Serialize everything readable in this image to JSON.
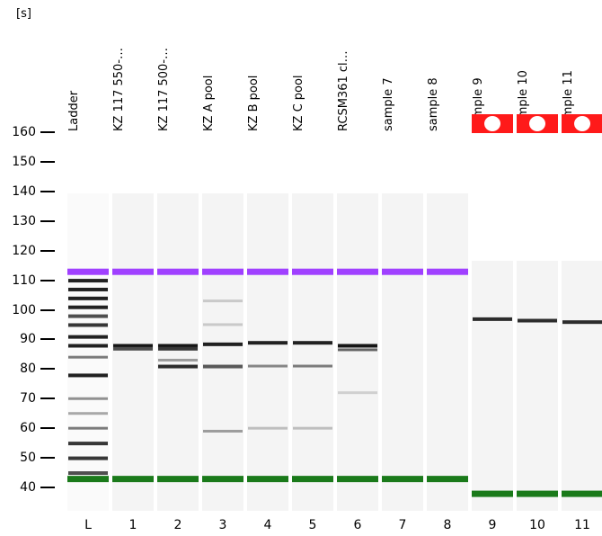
{
  "unit_label": "[s]",
  "y_ticks": [
    "160",
    "150",
    "140",
    "130",
    "120",
    "110",
    "100",
    "90",
    "80",
    "70",
    "60",
    "50",
    "40"
  ],
  "lanes": [
    {
      "label": "Ladder",
      "number": "L"
    },
    {
      "label": "KZ 117 550-…",
      "number": "1"
    },
    {
      "label": "KZ 117 500-…",
      "number": "2"
    },
    {
      "label": "KZ A pool",
      "number": "3"
    },
    {
      "label": "KZ B pool",
      "number": "4"
    },
    {
      "label": "KZ C pool",
      "number": "5"
    },
    {
      "label": "RCSM361 cl…",
      "number": "6"
    },
    {
      "label": "sample 7",
      "number": "7"
    },
    {
      "label": "sample 8",
      "number": "8"
    },
    {
      "label": "sample 9",
      "number": "9"
    },
    {
      "label": "sample 10",
      "number": "10"
    },
    {
      "label": "sample 11",
      "number": "11"
    }
  ],
  "alert_icon": "alert-icon",
  "colors": {
    "upper_marker": "#a040ff",
    "lower_marker": "#1a7a1a",
    "alert": "#ff1a1a"
  },
  "chart_data": {
    "type": "gel",
    "y_unit": "s",
    "ylim": [
      32,
      163
    ],
    "upper_marker_s": 113,
    "lower_marker_s": 43,
    "lanes": [
      {
        "number": "L",
        "bands": [
          {
            "s": 110,
            "i": 0.9
          },
          {
            "s": 107,
            "i": 0.9
          },
          {
            "s": 104,
            "i": 0.9
          },
          {
            "s": 101,
            "i": 0.9
          },
          {
            "s": 98,
            "i": 0.7
          },
          {
            "s": 95,
            "i": 0.8
          },
          {
            "s": 91,
            "i": 0.9
          },
          {
            "s": 88,
            "i": 0.9
          },
          {
            "s": 84,
            "i": 0.5
          },
          {
            "s": 78,
            "i": 0.9
          },
          {
            "s": 70,
            "i": 0.4
          },
          {
            "s": 65,
            "i": 0.3
          },
          {
            "s": 60,
            "i": 0.5
          },
          {
            "s": 55,
            "i": 0.8
          },
          {
            "s": 50,
            "i": 0.8
          },
          {
            "s": 45,
            "i": 0.7
          }
        ],
        "upper": true,
        "lower": true
      },
      {
        "number": "1",
        "bands": [
          {
            "s": 88,
            "i": 0.95
          },
          {
            "s": 87,
            "i": 0.7
          }
        ],
        "upper": true,
        "lower": true
      },
      {
        "number": "2",
        "bands": [
          {
            "s": 88,
            "i": 0.95
          },
          {
            "s": 87,
            "i": 0.8
          },
          {
            "s": 83,
            "i": 0.35
          },
          {
            "s": 81,
            "i": 0.85
          }
        ],
        "upper": true,
        "lower": true
      },
      {
        "number": "3",
        "bands": [
          {
            "s": 103,
            "i": 0.15
          },
          {
            "s": 95,
            "i": 0.15
          },
          {
            "s": 88.5,
            "i": 0.9
          },
          {
            "s": 81,
            "i": 0.65
          },
          {
            "s": 59,
            "i": 0.35
          }
        ],
        "upper": true,
        "lower": true
      },
      {
        "number": "4",
        "bands": [
          {
            "s": 89,
            "i": 0.9
          },
          {
            "s": 81,
            "i": 0.45
          },
          {
            "s": 60,
            "i": 0.2
          }
        ],
        "upper": true,
        "lower": true
      },
      {
        "number": "5",
        "bands": [
          {
            "s": 89,
            "i": 0.9
          },
          {
            "s": 81,
            "i": 0.5
          },
          {
            "s": 60,
            "i": 0.2
          }
        ],
        "upper": true,
        "lower": true
      },
      {
        "number": "6",
        "bands": [
          {
            "s": 88,
            "i": 0.95
          },
          {
            "s": 86.5,
            "i": 0.6
          },
          {
            "s": 72,
            "i": 0.12
          }
        ],
        "upper": true,
        "lower": true
      },
      {
        "number": "7",
        "bands": [],
        "upper": true,
        "lower": true
      },
      {
        "number": "8",
        "bands": [],
        "upper": true,
        "lower": true
      },
      {
        "number": "9",
        "bands": [
          {
            "s": 97,
            "i": 0.85
          }
        ],
        "upper": false,
        "lower": true,
        "lower_s": 38,
        "alert": true
      },
      {
        "number": "10",
        "bands": [
          {
            "s": 96.5,
            "i": 0.85
          }
        ],
        "upper": false,
        "lower": true,
        "lower_s": 38,
        "alert": true
      },
      {
        "number": "11",
        "bands": [
          {
            "s": 96,
            "i": 0.85
          }
        ],
        "upper": false,
        "lower": true,
        "lower_s": 38,
        "alert": true
      }
    ]
  }
}
